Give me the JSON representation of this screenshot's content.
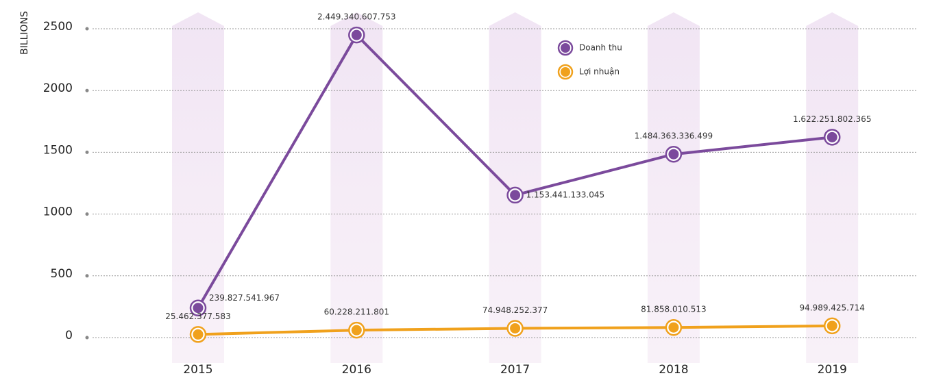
{
  "chart_data": {
    "type": "line",
    "y_label": "BILLIONS",
    "categories": [
      "2015",
      "2016",
      "2017",
      "2018",
      "2019"
    ],
    "series": [
      {
        "name": "Doanh thu",
        "color": "#7b4a9c",
        "values": [
          239.827541967,
          2449.340607753,
          1153.441133045,
          1484.363336499,
          1622.251802365
        ],
        "value_labels": [
          "239.827.541.967",
          "2.449.340.607.753",
          "1.153.441.133.045",
          "1.484.363.336.499",
          "1.622.251.802.365"
        ]
      },
      {
        "name": "Lợi nhuận",
        "color": "#f0a11c",
        "values": [
          25.462377583,
          60.228211801,
          74.948252377,
          81.858010513,
          94.989425714
        ],
        "value_labels": [
          "25.462.377.583",
          "60.228.211.801",
          "74.948.252.377",
          "81.858.010.513",
          "94.989.425.714"
        ]
      }
    ],
    "ylim": [
      0,
      2500
    ],
    "yticks": [
      0,
      500,
      1000,
      1500,
      2000,
      2500
    ],
    "grid": true
  }
}
